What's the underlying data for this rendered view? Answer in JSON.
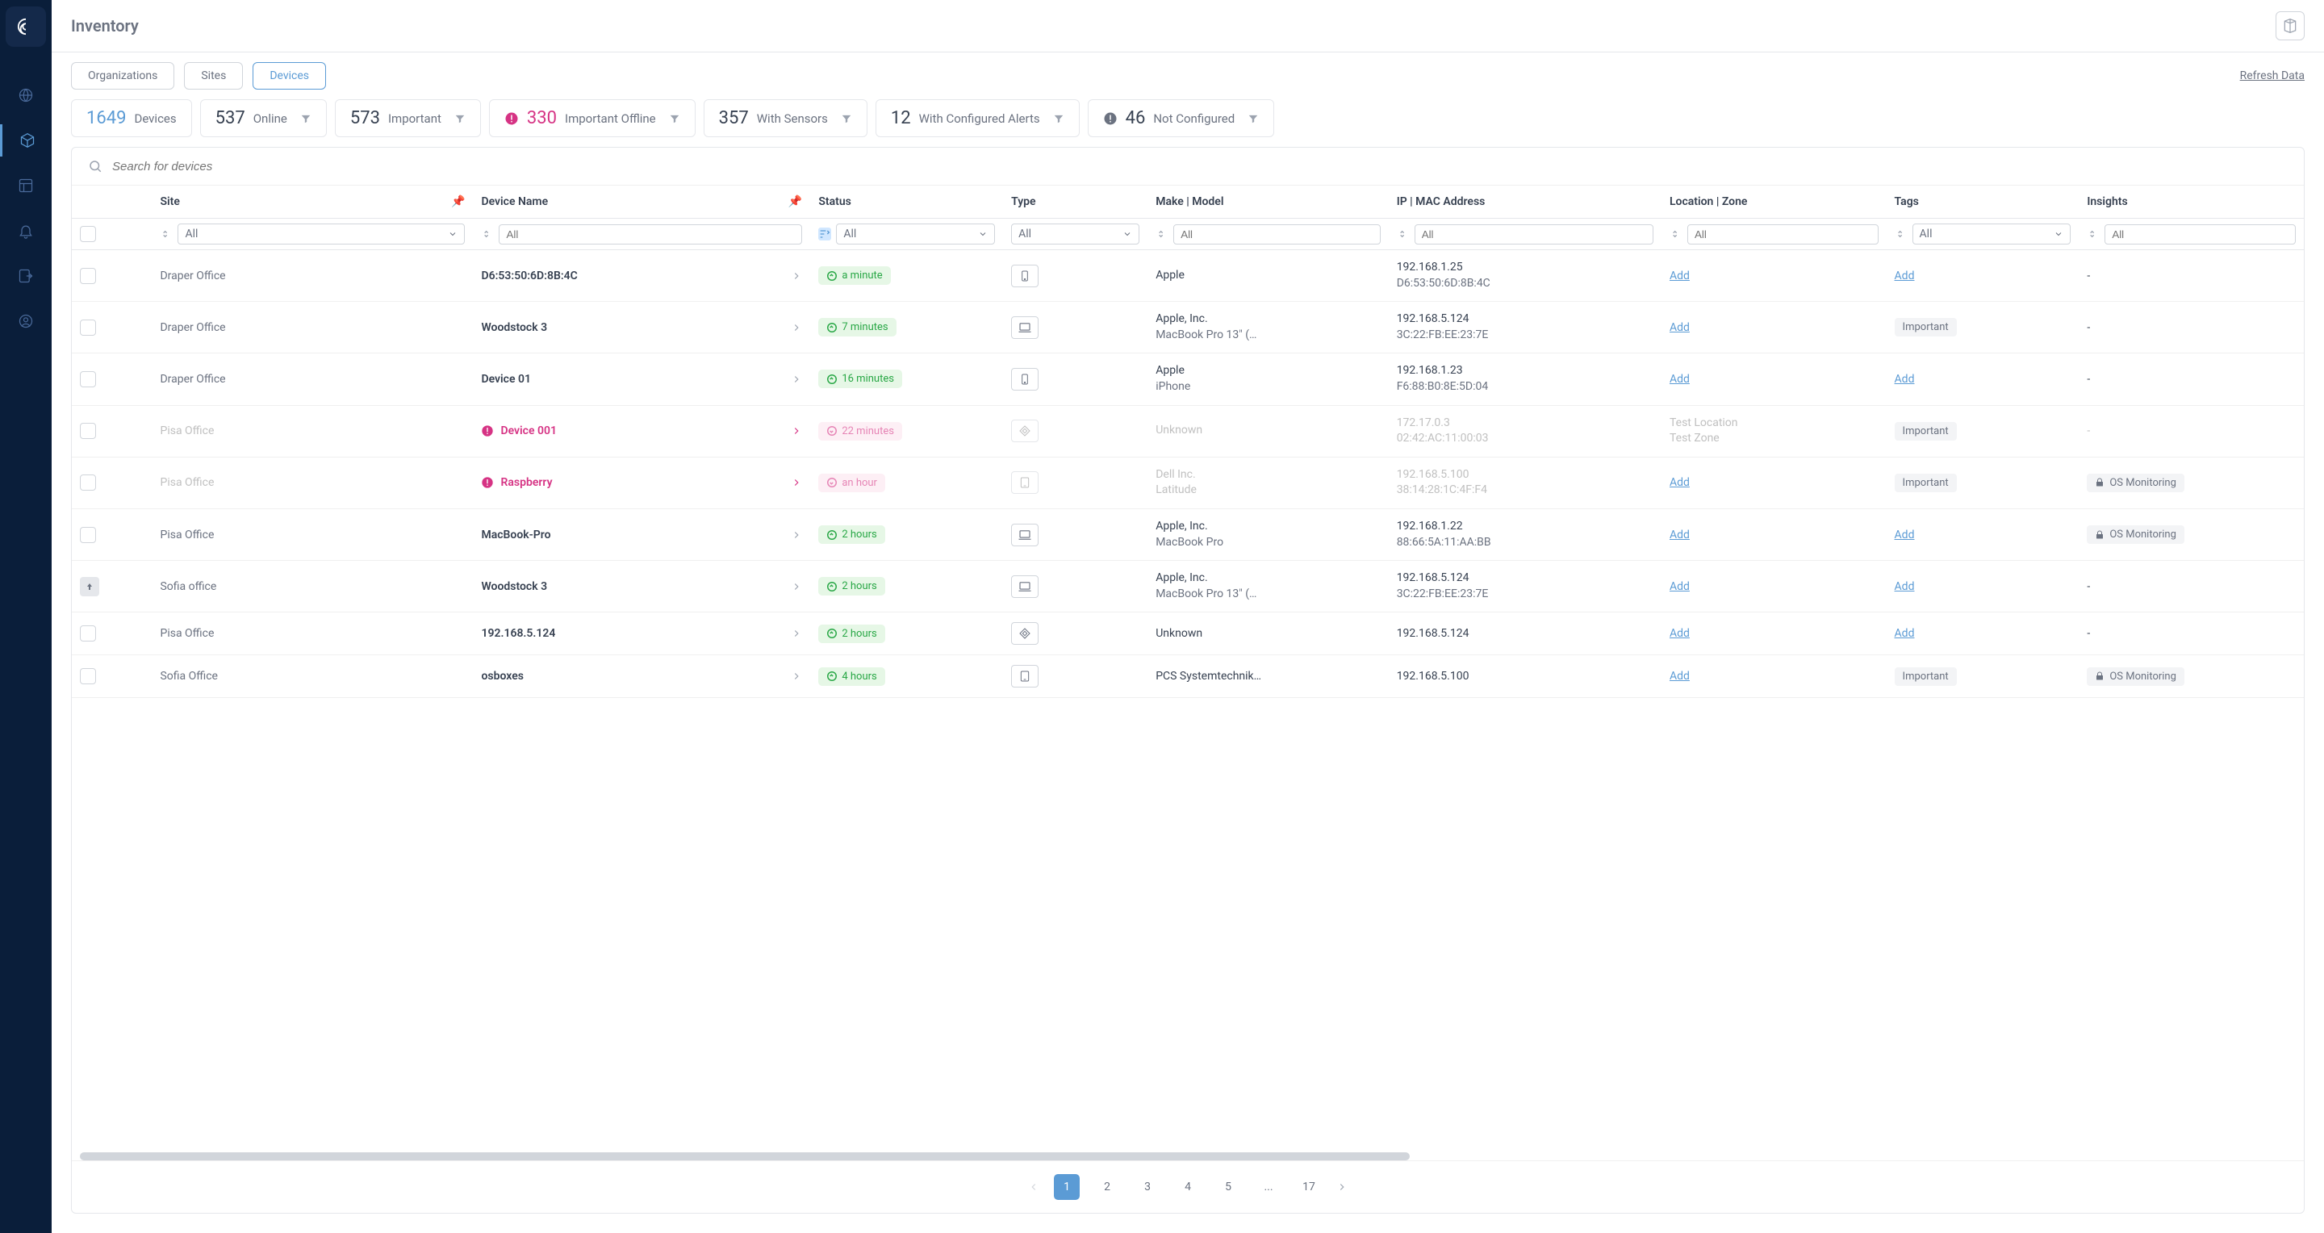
{
  "page_title": "Inventory",
  "refresh_label": "Refresh Data",
  "tabs": [
    {
      "label": "Organizations",
      "active": false
    },
    {
      "label": "Sites",
      "active": false
    },
    {
      "label": "Devices",
      "active": true
    }
  ],
  "stats": [
    {
      "num": "1649",
      "label": "Devices",
      "num_color": "blue",
      "icon": null,
      "filter": false
    },
    {
      "num": "537",
      "label": "Online",
      "num_color": "",
      "icon": null,
      "filter": true
    },
    {
      "num": "573",
      "label": "Important",
      "num_color": "",
      "icon": null,
      "filter": true
    },
    {
      "num": "330",
      "label": "Important Offline",
      "num_color": "red",
      "icon": "alert-red",
      "filter": true
    },
    {
      "num": "357",
      "label": "With Sensors",
      "num_color": "",
      "icon": null,
      "filter": true
    },
    {
      "num": "12",
      "label": "With Configured Alerts",
      "num_color": "",
      "icon": null,
      "filter": true
    },
    {
      "num": "46",
      "label": "Not Configured",
      "num_color": "",
      "icon": "alert-gray",
      "filter": true
    }
  ],
  "search_placeholder": "Search for devices",
  "columns": {
    "site": "Site",
    "device": "Device Name",
    "status": "Status",
    "type": "Type",
    "make": "Make | Model",
    "ip": "IP | MAC Address",
    "location": "Location | Zone",
    "tags": "Tags",
    "insights": "Insights"
  },
  "filter_all": "All",
  "rows": [
    {
      "site": "Draper Office",
      "device": "D6:53:50:6D:8B:4C",
      "alert": false,
      "status": "a minute",
      "status_type": "green",
      "type_icon": "phone",
      "make1": "Apple",
      "make2": "",
      "ip1": "192.168.1.25",
      "ip2": "D6:53:50:6D:8B:4C",
      "loc1": "",
      "loc2": "",
      "loc_link": "Add",
      "tag_link": "Add",
      "tag_badge": "",
      "insight": "-",
      "insight_badge": "",
      "dim": false,
      "arrow_up": false
    },
    {
      "site": "Draper Office",
      "device": "Woodstock 3",
      "alert": false,
      "status": "7 minutes",
      "status_type": "green",
      "type_icon": "laptop",
      "make1": "Apple, Inc.",
      "make2": "MacBook Pro 13\" (…",
      "ip1": "192.168.5.124",
      "ip2": "3C:22:FB:EE:23:7E",
      "loc1": "",
      "loc2": "",
      "loc_link": "Add",
      "tag_link": "",
      "tag_badge": "Important",
      "insight": "-",
      "insight_badge": "",
      "dim": false,
      "arrow_up": false
    },
    {
      "site": "Draper Office",
      "device": "Device 01",
      "alert": false,
      "status": "16 minutes",
      "status_type": "green",
      "type_icon": "phone",
      "make1": "Apple",
      "make2": "iPhone",
      "ip1": "192.168.1.23",
      "ip2": "F6:88:B0:8E:5D:04",
      "loc1": "",
      "loc2": "",
      "loc_link": "Add",
      "tag_link": "Add",
      "tag_badge": "",
      "insight": "-",
      "insight_badge": "",
      "dim": false,
      "arrow_up": false
    },
    {
      "site": "Pisa Office",
      "device": "Device 001",
      "alert": true,
      "status": "22 minutes",
      "status_type": "pink",
      "type_icon": "diamond",
      "make1": "Unknown",
      "make2": "",
      "ip1": "172.17.0.3",
      "ip2": "02:42:AC:11:00:03",
      "loc1": "Test Location",
      "loc2": "Test Zone",
      "loc_link": "",
      "tag_link": "",
      "tag_badge": "Important",
      "insight": "-",
      "insight_badge": "",
      "dim": true,
      "arrow_up": false
    },
    {
      "site": "Pisa Office",
      "device": "Raspberry",
      "alert": true,
      "status": "an hour",
      "status_type": "pink",
      "type_icon": "tablet",
      "make1": "Dell Inc.",
      "make2": "Latitude",
      "ip1": "192.168.5.100",
      "ip2": "38:14:28:1C:4F:F4",
      "loc1": "",
      "loc2": "",
      "loc_link": "Add",
      "tag_link": "",
      "tag_badge": "Important",
      "insight": "",
      "insight_badge": "OS Monitoring",
      "dim": true,
      "arrow_up": false
    },
    {
      "site": "Pisa Office",
      "device": "MacBook-Pro",
      "alert": false,
      "status": "2 hours",
      "status_type": "green",
      "type_icon": "laptop",
      "make1": "Apple, Inc.",
      "make2": "MacBook Pro",
      "ip1": "192.168.1.22",
      "ip2": "88:66:5A:11:AA:BB",
      "loc1": "",
      "loc2": "",
      "loc_link": "Add",
      "tag_link": "Add",
      "tag_badge": "",
      "insight": "",
      "insight_badge": "OS Monitoring",
      "dim": false,
      "arrow_up": false
    },
    {
      "site": "Sofia office",
      "device": "Woodstock 3",
      "alert": false,
      "status": "2 hours",
      "status_type": "green",
      "type_icon": "laptop",
      "make1": "Apple, Inc.",
      "make2": "MacBook Pro 13\" (…",
      "ip1": "192.168.5.124",
      "ip2": "3C:22:FB:EE:23:7E",
      "loc1": "",
      "loc2": "",
      "loc_link": "Add",
      "tag_link": "Add",
      "tag_badge": "",
      "insight": "-",
      "insight_badge": "",
      "dim": false,
      "arrow_up": true
    },
    {
      "site": "Pisa Office",
      "device": "192.168.5.124",
      "alert": false,
      "status": "2 hours",
      "status_type": "green",
      "type_icon": "diamond",
      "make1": "Unknown",
      "make2": "",
      "ip1": "192.168.5.124",
      "ip2": "",
      "loc1": "",
      "loc2": "",
      "loc_link": "Add",
      "tag_link": "Add",
      "tag_badge": "",
      "insight": "-",
      "insight_badge": "",
      "dim": false,
      "arrow_up": false
    },
    {
      "site": "Sofia Office",
      "device": "osboxes",
      "alert": false,
      "status": "4 hours",
      "status_type": "green",
      "type_icon": "tablet",
      "make1": "PCS Systemtechnik…",
      "make2": "",
      "ip1": "192.168.5.100",
      "ip2": "",
      "loc1": "",
      "loc2": "",
      "loc_link": "Add",
      "tag_link": "",
      "tag_badge": "Important",
      "insight": "",
      "insight_badge": "OS Monitoring",
      "dim": false,
      "arrow_up": false
    }
  ],
  "pagination": {
    "pages": [
      "1",
      "2",
      "3",
      "4",
      "5",
      "...",
      "17"
    ],
    "active": "1"
  },
  "colors": {
    "sidebar_bg": "#0a1e3a",
    "accent": "#5b9bd5",
    "danger": "#d63384",
    "success": "#28a745",
    "text_muted": "#6b7280",
    "border": "#e5e7eb"
  }
}
